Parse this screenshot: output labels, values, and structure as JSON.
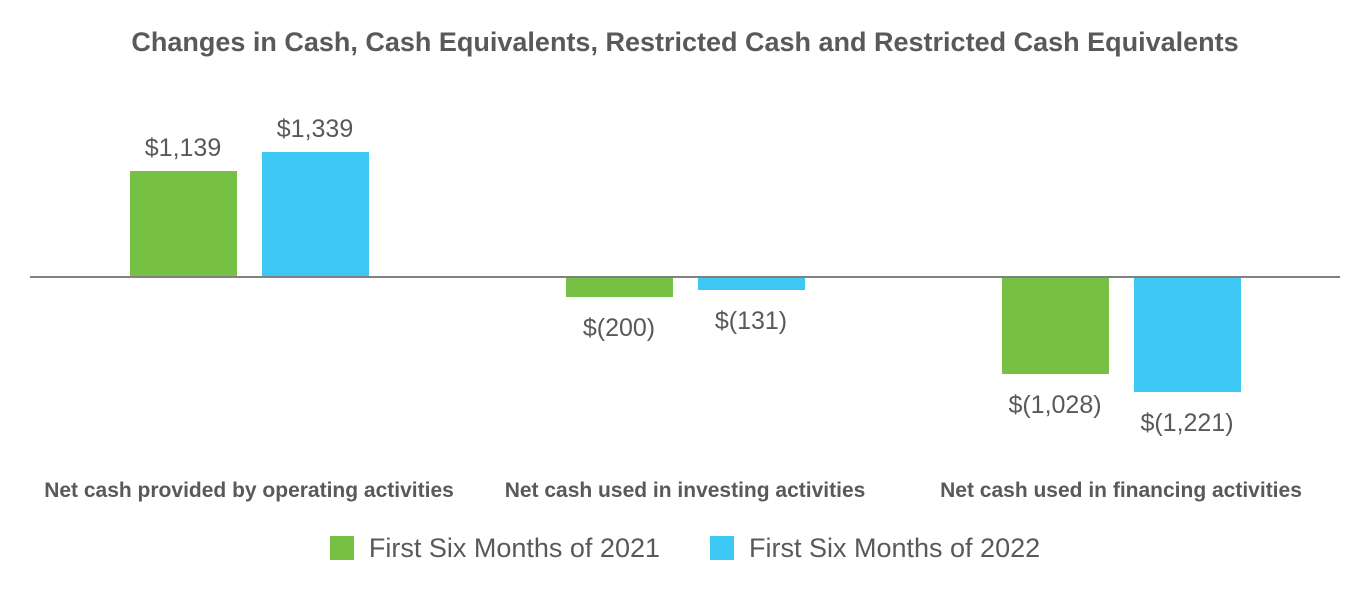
{
  "chart_data": {
    "type": "bar",
    "title": "Changes in Cash, Cash Equivalents, Restricted Cash and Restricted Cash Equivalents",
    "categories": [
      "Net cash provided by operating activities",
      "Net cash used in investing activities",
      "Net cash used in financing activities"
    ],
    "category_keys": [
      "operating",
      "investing",
      "financing"
    ],
    "series": [
      {
        "name": "First Six Months of 2021",
        "key": "2021",
        "color": "#76C043",
        "values": [
          1139,
          -200,
          -1028
        ],
        "value_labels": [
          "$1,139",
          "$(200)",
          "$(1,028)"
        ]
      },
      {
        "name": "First Six Months of 2022",
        "key": "2022",
        "color": "#3CC7F4",
        "values": [
          1339,
          -131,
          -1221
        ],
        "value_labels": [
          "$1,339",
          "$(131)",
          "$(1,221)"
        ]
      }
    ],
    "ylim": [
      -1400,
      1500
    ],
    "grid": false,
    "legend_position": "bottom",
    "axis_color": "#808080",
    "text_color": "#595959",
    "background_color": "#FFFFFF"
  }
}
